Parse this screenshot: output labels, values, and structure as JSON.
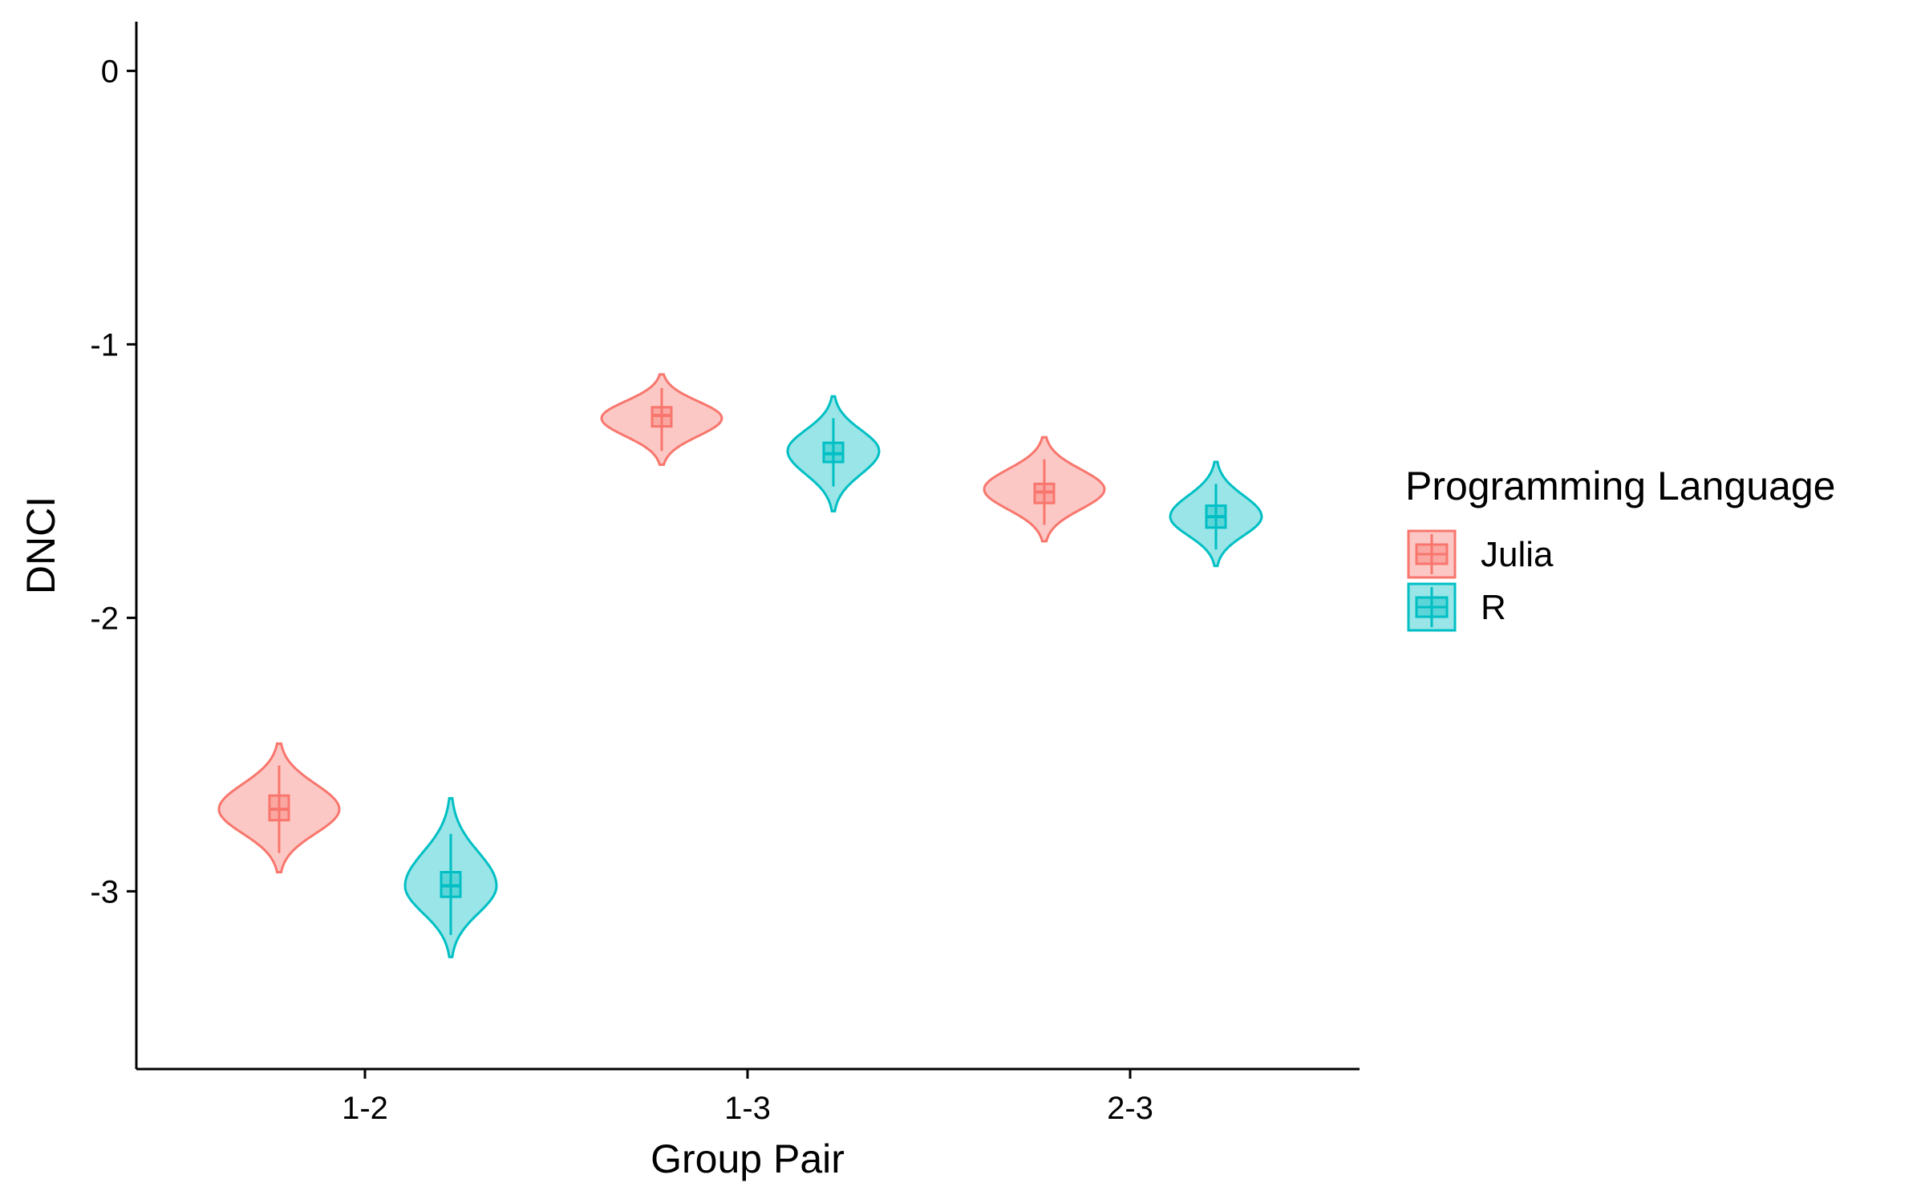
{
  "chart_data": {
    "type": "violin",
    "title": "",
    "xlabel": "Group Pair",
    "ylabel": "DNCI",
    "categories": [
      "1-2",
      "1-3",
      "2-3"
    ],
    "ylim": [
      -3.65,
      0.18
    ],
    "yticks": [
      0,
      -1,
      -2,
      -3
    ],
    "ytick_labels": [
      "0",
      "-1",
      "-2",
      "-3"
    ],
    "grid": false,
    "legend": {
      "title": "Programming Language",
      "position": "right"
    },
    "series": [
      {
        "name": "Julia",
        "color": "#F8766D",
        "violins": [
          {
            "category": "1-2",
            "min": -2.93,
            "max": -2.46,
            "q1": -2.74,
            "median": -2.7,
            "q3": -2.65,
            "whisker_low": -2.86,
            "whisker_high": -2.54,
            "mode": -2.7
          },
          {
            "category": "1-3",
            "min": -1.44,
            "max": -1.11,
            "q1": -1.3,
            "median": -1.26,
            "q3": -1.23,
            "whisker_low": -1.39,
            "whisker_high": -1.16,
            "mode": -1.27
          },
          {
            "category": "2-3",
            "min": -1.72,
            "max": -1.34,
            "q1": -1.58,
            "median": -1.54,
            "q3": -1.51,
            "whisker_low": -1.66,
            "whisker_high": -1.42,
            "mode": -1.53
          }
        ]
      },
      {
        "name": "R",
        "color": "#00BFC4",
        "violins": [
          {
            "category": "1-2",
            "min": -3.24,
            "max": -2.66,
            "q1": -3.02,
            "median": -2.98,
            "q3": -2.93,
            "whisker_low": -3.16,
            "whisker_high": -2.79,
            "mode": -2.98
          },
          {
            "category": "1-3",
            "min": -1.61,
            "max": -1.19,
            "q1": -1.43,
            "median": -1.4,
            "q3": -1.36,
            "whisker_low": -1.52,
            "whisker_high": -1.27,
            "mode": -1.39
          },
          {
            "category": "2-3",
            "min": -1.81,
            "max": -1.43,
            "q1": -1.67,
            "median": -1.63,
            "q3": -1.59,
            "whisker_low": -1.75,
            "whisker_high": -1.51,
            "mode": -1.63
          }
        ]
      }
    ]
  }
}
